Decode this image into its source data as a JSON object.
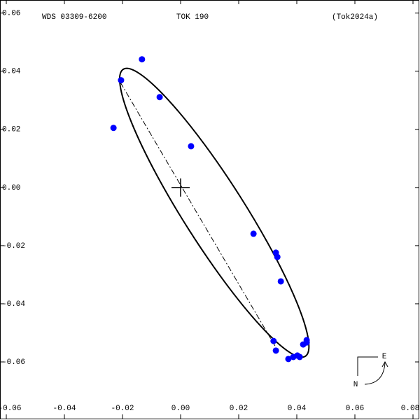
{
  "chart_data": {
    "type": "orbit",
    "title": "TOK 190",
    "left_label": "WDS 03309-6200",
    "right_label": "(Tok2024a)",
    "compass": {
      "east": "E",
      "north": "N"
    },
    "xlim": [
      -0.06,
      0.08
    ],
    "ylim": [
      -0.0795,
      0.0645
    ],
    "xticks": [
      {
        "value": -0.06,
        "label": "-0.06"
      },
      {
        "value": -0.04,
        "label": "-0.04"
      },
      {
        "value": -0.02,
        "label": "-0.02"
      },
      {
        "value": 0,
        "label": "0.00"
      },
      {
        "value": 0.02,
        "label": "0.02"
      },
      {
        "value": 0.04,
        "label": "0.04"
      },
      {
        "value": 0.06,
        "label": "0.06"
      },
      {
        "value": 0.08,
        "label": "0.08"
      }
    ],
    "yticks": [
      {
        "value": -0.06,
        "label": "-0.06"
      },
      {
        "value": -0.04,
        "label": "-0.04"
      },
      {
        "value": -0.02,
        "label": "-0.02"
      },
      {
        "value": 0,
        "label": "0.00"
      },
      {
        "value": 0.02,
        "label": "0.02"
      },
      {
        "value": 0.04,
        "label": "0.04"
      },
      {
        "value": 0.06,
        "label": "0.06"
      }
    ],
    "color": "#0000ff",
    "x": [
      -0.0133,
      -0.0205,
      -0.0072,
      -0.0231,
      0.0036,
      0.0251,
      0.0328,
      0.0333,
      0.0345,
      0.032,
      0.0328,
      0.0371,
      0.0388,
      0.0402,
      0.041,
      0.0422,
      0.0434,
      0.0434
    ],
    "y": [
      0.0441,
      0.0369,
      0.0311,
      0.0205,
      0.0142,
      -0.0159,
      -0.0224,
      -0.0239,
      -0.0323,
      -0.0528,
      -0.0561,
      -0.059,
      -0.0583,
      -0.0578,
      -0.0583,
      -0.054,
      -0.0533,
      -0.0525
    ],
    "orbit": {
      "center": [
        0.0116,
        -0.0087
      ],
      "semi_axes": [
        0.0585,
        0.0105
      ],
      "angle_deg": -57.6
    },
    "line_of_nodes": {
      "x": [
        -0.0207,
        0.0325
      ],
      "y": [
        0.0361,
        -0.0545
      ]
    },
    "primary": {
      "x": 0,
      "y": 0
    }
  }
}
